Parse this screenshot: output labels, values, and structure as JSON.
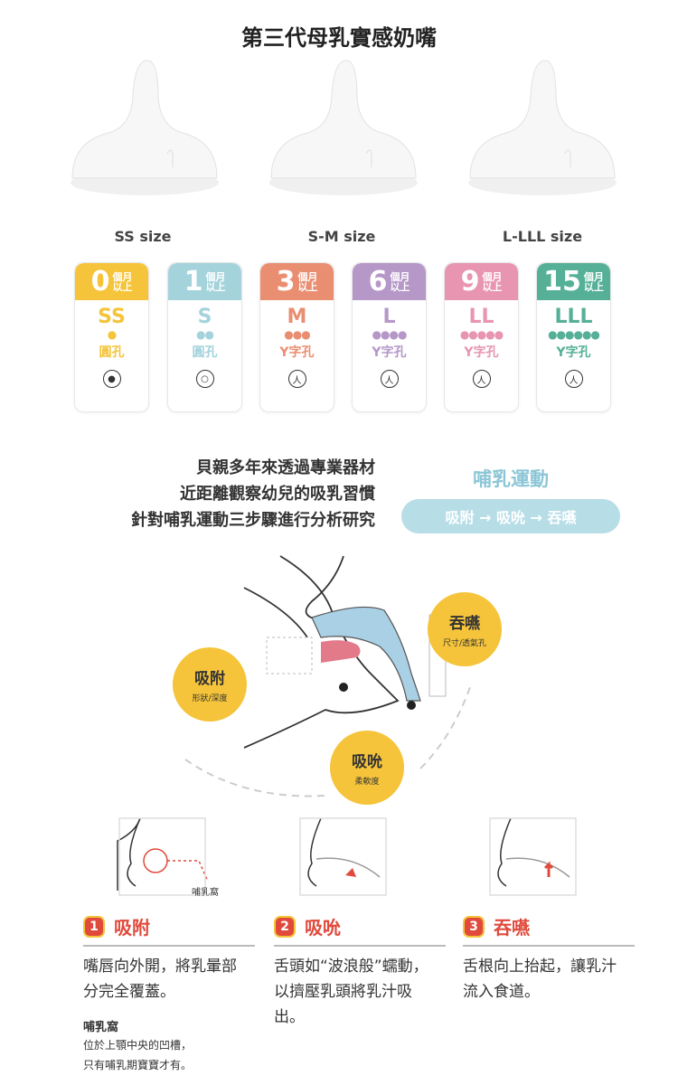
{
  "title": "第三代母乳實感奶嘴",
  "size_groups": [
    "SS size",
    "S-M size",
    "L-LLL size"
  ],
  "cards": [
    {
      "age": "0",
      "unit1": "個月",
      "unit2": "以上",
      "size": "SS",
      "drops": 1,
      "hole": "圓孔",
      "hole_icon": "dot-circle-icon",
      "color": "#f5c43a"
    },
    {
      "age": "1",
      "unit1": "個月",
      "unit2": "以上",
      "size": "S",
      "drops": 2,
      "hole": "圓孔",
      "hole_icon": "ring-circle-icon",
      "color": "#a5d3dc"
    },
    {
      "age": "3",
      "unit1": "個月",
      "unit2": "以上",
      "size": "M",
      "drops": 3,
      "hole": "Y字孔",
      "hole_icon": "y-cut-circle-icon",
      "color": "#ea8e72"
    },
    {
      "age": "6",
      "unit1": "個月",
      "unit2": "以上",
      "size": "L",
      "drops": 4,
      "hole": "Y字孔",
      "hole_icon": "y-cut-circle-icon",
      "color": "#b597c8"
    },
    {
      "age": "9",
      "unit1": "個月",
      "unit2": "以上",
      "size": "LL",
      "drops": 5,
      "hole": "Y字孔",
      "hole_icon": "y-cut-circle-icon",
      "color": "#e795b0"
    },
    {
      "age": "15",
      "unit1": "個月",
      "unit2": "以上",
      "size": "LLL",
      "drops": 6,
      "hole": "Y字孔",
      "hole_icon": "y-cut-circle-icon",
      "color": "#55b097"
    }
  ],
  "intro": [
    "貝親多年來透過專業器材",
    "近距離觀察幼兒的吸乳習慣",
    "針對哺乳運動三步驟進行分析研究"
  ],
  "motion": {
    "title": "哺乳運動",
    "flow": "吸附 → 吸吮 → 吞嚥"
  },
  "diagram": {
    "latch": {
      "title": "吸附",
      "sub": "形狀/深度"
    },
    "suck": {
      "title": "吸吮",
      "sub": "柔軟度"
    },
    "swallow": {
      "title": "吞嚥",
      "sub": "尺寸/透氣孔"
    }
  },
  "palate_label": "哺乳窩",
  "steps": [
    {
      "num": "1",
      "title": "吸附",
      "text": "嘴唇向外開，將乳暈部分完全覆蓋。"
    },
    {
      "num": "2",
      "title": "吸吮",
      "text": "舌頭如“波浪般”蠕動，以擠壓乳頭將乳汁吸出。"
    },
    {
      "num": "3",
      "title": "吞嚥",
      "text": "舌根向上抬起，讓乳汁流入食道。"
    }
  ],
  "note": {
    "title": "哺乳窩",
    "lines": [
      "位於上顎中央的凹槽，",
      "只有哺乳期寶寶才有。"
    ]
  }
}
